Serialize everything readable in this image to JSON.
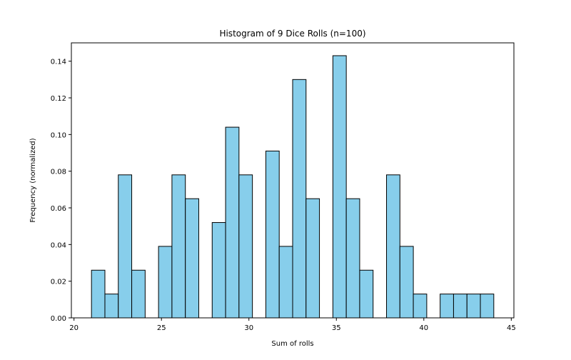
{
  "chart_data": {
    "type": "bar",
    "title": "Histogram of 9 Dice Rolls (n=100)",
    "xlabel": "Sum of rolls",
    "ylabel": "Frequency (normalized)",
    "xlim": [
      19.85,
      45.15
    ],
    "ylim": [
      0,
      0.15
    ],
    "xticks": [
      20,
      25,
      30,
      35,
      40,
      45
    ],
    "yticks": [
      0.0,
      0.02,
      0.04,
      0.06,
      0.08,
      0.1,
      0.12,
      0.14
    ],
    "xtick_labels": [
      "20",
      "25",
      "30",
      "35",
      "40",
      "45"
    ],
    "ytick_labels": [
      "0.00",
      "0.02",
      "0.04",
      "0.06",
      "0.08",
      "0.10",
      "0.12",
      "0.14"
    ],
    "bin_edges": [
      21.0,
      21.767,
      22.533,
      23.3,
      24.067,
      24.833,
      25.6,
      26.367,
      27.133,
      27.9,
      28.667,
      29.433,
      30.2,
      30.967,
      31.733,
      32.5,
      33.267,
      34.033,
      34.8,
      35.567,
      36.333,
      37.1,
      37.867,
      38.633,
      39.4,
      40.167,
      40.933,
      41.7,
      42.467,
      43.233,
      44.0
    ],
    "values": [
      0.026,
      0.013,
      0.078,
      0.026,
      0,
      0.039,
      0.078,
      0.065,
      0,
      0.052,
      0.104,
      0.078,
      0,
      0.091,
      0.039,
      0.13,
      0.065,
      0,
      0.143,
      0.065,
      0.026,
      0,
      0.078,
      0.039,
      0.013,
      0,
      0.013,
      0.013,
      0.013,
      0.013
    ],
    "bar_color": "#87ceeb",
    "edge_color": "#000000",
    "grid": false
  }
}
